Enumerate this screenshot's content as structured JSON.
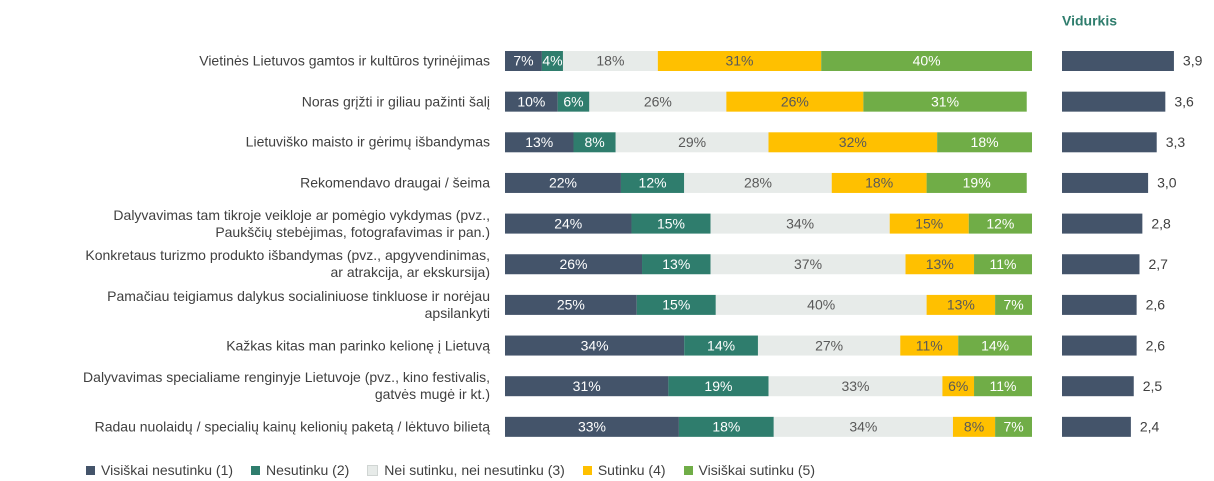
{
  "chart_data": [
    {
      "type": "stacked-bar-horizontal",
      "categories": [
        "Vietinės Lietuvos gamtos ir kultūros tyrinėjimas",
        "Noras grįžti ir giliau pažinti šalį",
        "Lietuviško maisto ir gėrimų išbandymas",
        "Rekomendavo draugai / šeima",
        "Dalyvavimas tam tikroje veikloje ar pomėgio vykdymas (pvz.,\nPaukščių stebėjimas, fotografavimas ir pan.)",
        "Konkretaus turizmo produkto išbandymas (pvz., apgyvendinimas,\nar atrakcija, ar ekskursija)",
        "Pamačiau teigiamus dalykus socialiniuose tinkluose ir norėjau\napsilankyti",
        "Kažkas kitas man parinko kelionę į Lietuvą",
        "Dalyvavimas specialiame renginyje Lietuvoje (pvz., kino festivalis,\ngatvės mugė ir kt.)",
        "Radau nuolaidų / specialių kainų kelionių paketą / lėktuvo bilietą"
      ],
      "xlim": [
        0,
        100
      ],
      "series": [
        {
          "name": "Visiškai nesutinku (1)",
          "color": "#44546a",
          "values": [
            7,
            10,
            13,
            22,
            24,
            26,
            25,
            34,
            31,
            33
          ],
          "value_labels": [
            "7%",
            "10%",
            "13%",
            "22%",
            "24%",
            "26%",
            "25%",
            "34%",
            "31%",
            "33%"
          ]
        },
        {
          "name": "Nesutinku (2)",
          "color": "#2f7d6d",
          "values": [
            4,
            6,
            8,
            12,
            15,
            13,
            15,
            14,
            19,
            18
          ],
          "value_labels": [
            "4%",
            "6%",
            "8%",
            "12%",
            "15%",
            "13%",
            "15%",
            "14%",
            "19%",
            "18%"
          ]
        },
        {
          "name": "Nei sutinku, nei nesutinku (3)",
          "color": "#e7ebe9",
          "values": [
            18,
            26,
            29,
            28,
            34,
            37,
            40,
            27,
            33,
            34
          ],
          "value_labels": [
            "18%",
            "26%",
            "29%",
            "28%",
            "34%",
            "37%",
            "40%",
            "27%",
            "33%",
            "34%"
          ]
        },
        {
          "name": "Sutinku (4)",
          "color": "#ffc000",
          "values": [
            31,
            26,
            32,
            18,
            15,
            13,
            13,
            11,
            6,
            8
          ],
          "value_labels": [
            "31%",
            "26%",
            "32%",
            "18%",
            "15%",
            "13%",
            "13%",
            "11%",
            "6%",
            "8%"
          ]
        },
        {
          "name": "Visiškai sutinku (5)",
          "color": "#70ad47",
          "values": [
            40,
            31,
            18,
            19,
            12,
            11,
            7,
            14,
            11,
            7
          ],
          "value_labels": [
            "40%",
            "31%",
            "18%",
            "19%",
            "12%",
            "11%",
            "7%",
            "14%",
            "11%",
            "7%"
          ]
        }
      ]
    },
    {
      "type": "bar-horizontal",
      "title": "Vidurkis",
      "color": "#44546a",
      "values": [
        3.9,
        3.6,
        3.3,
        3.0,
        2.8,
        2.7,
        2.6,
        2.6,
        2.5,
        2.4
      ],
      "value_labels": [
        "3,9",
        "3,6",
        "3,3",
        "3,0",
        "2,8",
        "2,7",
        "2,6",
        "2,6",
        "2,5",
        "2,4"
      ]
    }
  ]
}
